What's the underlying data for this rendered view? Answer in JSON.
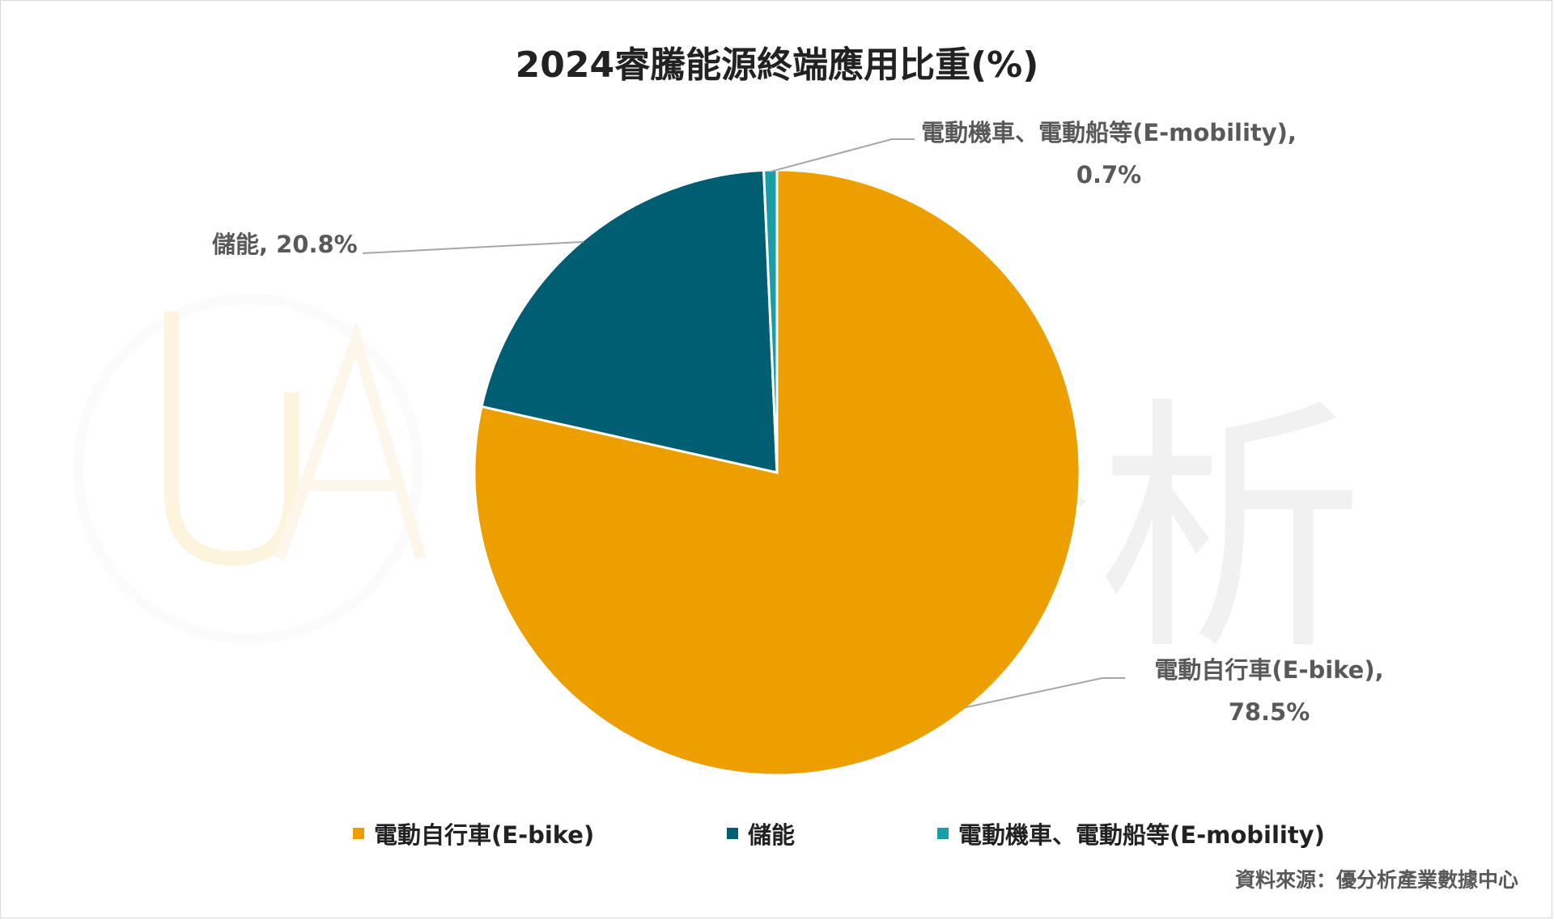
{
  "chart_data": {
    "type": "pie",
    "title": "2024睿騰能源終端應用比重(%)",
    "categories": [
      "電動自行車(E-bike)",
      "儲能",
      "電動機車、電動船等(E-mobility)"
    ],
    "values": [
      78.5,
      20.8,
      0.7
    ],
    "colors": [
      "#ED9F00",
      "#005E73",
      "#1A9DA6"
    ],
    "data_labels": [
      {
        "line1": "電動自行車(E-bike),",
        "line2": "78.5%"
      },
      {
        "line1": "儲能, 20.8%",
        "line2": ""
      },
      {
        "line1": "電動機車、電動船等(E-mobility),",
        "line2": "0.7%"
      }
    ],
    "legend_position": "bottom",
    "unit": "%"
  },
  "watermark": {
    "text": "優分析"
  },
  "source": "資料來源：優分析產業數據中心"
}
